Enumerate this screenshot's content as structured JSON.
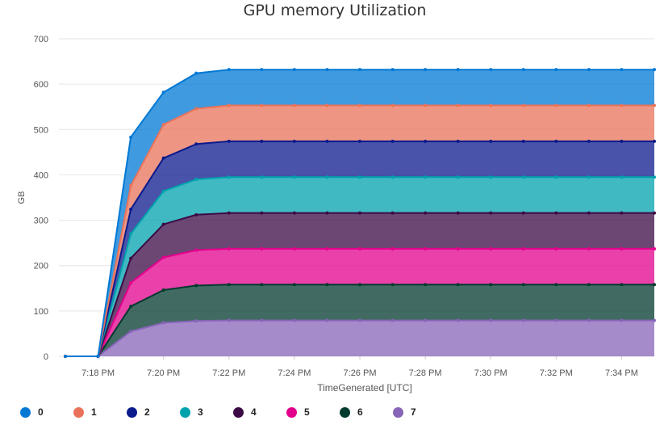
{
  "chart_data": {
    "type": "area",
    "stacked": true,
    "title": "GPU memory Utilization",
    "xlabel": "TimeGenerated [UTC]",
    "ylabel": "GB",
    "ylim": [
      0,
      700
    ],
    "yticks": [
      0,
      100,
      200,
      300,
      400,
      500,
      600,
      700
    ],
    "xlim": [
      "7:17 PM",
      "7:35 PM"
    ],
    "xticks": [
      "7:18 PM",
      "7:20 PM",
      "7:22 PM",
      "7:24 PM",
      "7:26 PM",
      "7:28 PM",
      "7:30 PM",
      "7:32 PM",
      "7:34 PM"
    ],
    "x": [
      "7:17 PM",
      "7:18 PM",
      "7:19 PM",
      "7:20 PM",
      "7:21 PM",
      "7:22 PM",
      "7:23 PM",
      "7:24 PM",
      "7:25 PM",
      "7:26 PM",
      "7:27 PM",
      "7:28 PM",
      "7:29 PM",
      "7:30 PM",
      "7:31 PM",
      "7:32 PM",
      "7:33 PM",
      "7:34 PM",
      "7:35 PM"
    ],
    "grid": "horizontal",
    "legend_position": "bottom-left",
    "series": [
      {
        "name": "0",
        "color": "#0078d4",
        "values": [
          0,
          0,
          107,
          71,
          78,
          79,
          79,
          79,
          79,
          79,
          79,
          79,
          79,
          79,
          79,
          79,
          79,
          79,
          79
        ]
      },
      {
        "name": "1",
        "color": "#e8735a",
        "values": [
          0,
          0,
          52,
          74,
          78,
          79,
          79,
          79,
          79,
          79,
          79,
          79,
          79,
          79,
          79,
          79,
          79,
          79,
          79
        ]
      },
      {
        "name": "2",
        "color": "#0b1a8c",
        "values": [
          0,
          0,
          54,
          73,
          78,
          79,
          79,
          79,
          79,
          79,
          79,
          79,
          79,
          79,
          79,
          79,
          79,
          79,
          79
        ]
      },
      {
        "name": "3",
        "color": "#00a2ad",
        "values": [
          0,
          0,
          54,
          73,
          78,
          79,
          79,
          79,
          79,
          79,
          79,
          79,
          79,
          79,
          79,
          79,
          79,
          79,
          79
        ]
      },
      {
        "name": "4",
        "color": "#3b0a45",
        "values": [
          0,
          0,
          54,
          73,
          78,
          79,
          79,
          79,
          79,
          79,
          79,
          79,
          79,
          79,
          79,
          79,
          79,
          79,
          79
        ]
      },
      {
        "name": "5",
        "color": "#e3008c",
        "values": [
          0,
          0,
          52,
          72,
          78,
          79,
          79,
          79,
          79,
          79,
          79,
          79,
          79,
          79,
          79,
          79,
          79,
          79,
          79
        ]
      },
      {
        "name": "6",
        "color": "#013a2e",
        "values": [
          0,
          0,
          55,
          72,
          78,
          79,
          79,
          79,
          79,
          79,
          79,
          79,
          79,
          79,
          79,
          79,
          79,
          79,
          79
        ]
      },
      {
        "name": "7",
        "color": "#8764b8",
        "values": [
          0,
          0,
          55,
          74,
          78,
          79,
          79,
          79,
          79,
          79,
          79,
          79,
          79,
          79,
          79,
          79,
          79,
          79,
          79
        ]
      }
    ]
  }
}
